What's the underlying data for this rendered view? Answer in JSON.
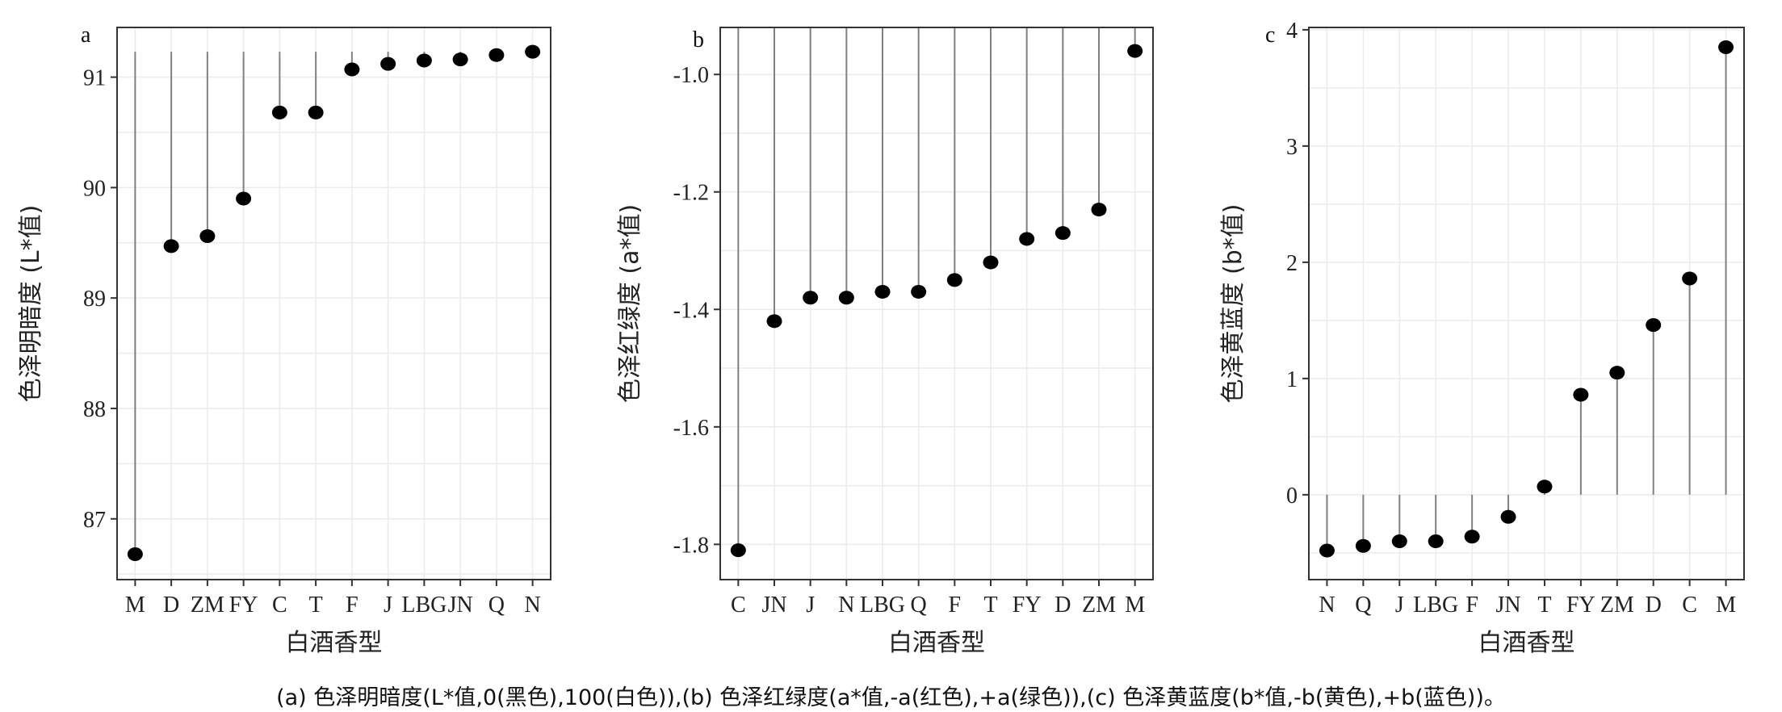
{
  "caption": "(a) 色泽明暗度(L*值,0(黑色),100(白色)),(b) 色泽红绿度(a*值,-a(红色),+a(绿色)),(c) 色泽黄蓝度(b*值,-b(黄色),+b(蓝色))。",
  "colors": {
    "point": "#000000",
    "stem": "#808080",
    "grid": "#ebebeb",
    "axis": "#333333"
  },
  "chart_data": [
    {
      "type": "scatter",
      "panel_label": "a",
      "xlabel": "白酒香型",
      "ylabel": "色泽明暗度 (L*值)",
      "categories": [
        "M",
        "D",
        "ZM",
        "FY",
        "C",
        "T",
        "F",
        "J",
        "LBG",
        "JN",
        "Q",
        "N"
      ],
      "values": [
        86.68,
        89.47,
        89.56,
        89.9,
        90.68,
        90.68,
        91.07,
        91.12,
        91.15,
        91.16,
        91.2,
        91.23
      ],
      "baseline": 91.23,
      "ylim": [
        86.45,
        91.45
      ],
      "yticks": [
        87,
        88,
        89,
        90,
        91
      ],
      "yticklabels": [
        "87",
        "88",
        "89",
        "90",
        "91"
      ],
      "grid": true
    },
    {
      "type": "scatter",
      "panel_label": "b",
      "xlabel": "白酒香型",
      "ylabel": "色泽红绿度 (a*值)",
      "categories": [
        "C",
        "JN",
        "J",
        "N",
        "LBG",
        "Q",
        "F",
        "T",
        "FY",
        "D",
        "ZM",
        "M"
      ],
      "values": [
        -1.81,
        -1.42,
        -1.38,
        -1.38,
        -1.37,
        -1.37,
        -1.35,
        -1.32,
        -1.28,
        -1.27,
        -1.23,
        -0.96
      ],
      "baseline": -0.92,
      "ylim": [
        -1.86,
        -0.92
      ],
      "yticks": [
        -1.8,
        -1.6,
        -1.4,
        -1.2,
        -1.0
      ],
      "yticklabels": [
        "-1.8",
        "-1.6",
        "-1.4",
        "-1.2",
        "-1.0"
      ],
      "grid": true
    },
    {
      "type": "scatter",
      "panel_label": "c",
      "xlabel": "白酒香型",
      "ylabel": "色泽黄蓝度 (b*值)",
      "categories": [
        "N",
        "Q",
        "J",
        "LBG",
        "F",
        "JN",
        "T",
        "FY",
        "ZM",
        "D",
        "C",
        "M"
      ],
      "values": [
        -0.48,
        -0.44,
        -0.4,
        -0.4,
        -0.36,
        -0.19,
        0.07,
        0.86,
        1.05,
        1.46,
        1.86,
        3.85
      ],
      "baseline": 0,
      "ylim": [
        -0.73,
        4.02
      ],
      "yticks": [
        0,
        1,
        2,
        3,
        4
      ],
      "yticklabels": [
        "0",
        "1",
        "2",
        "3",
        "4"
      ],
      "grid": true
    }
  ]
}
